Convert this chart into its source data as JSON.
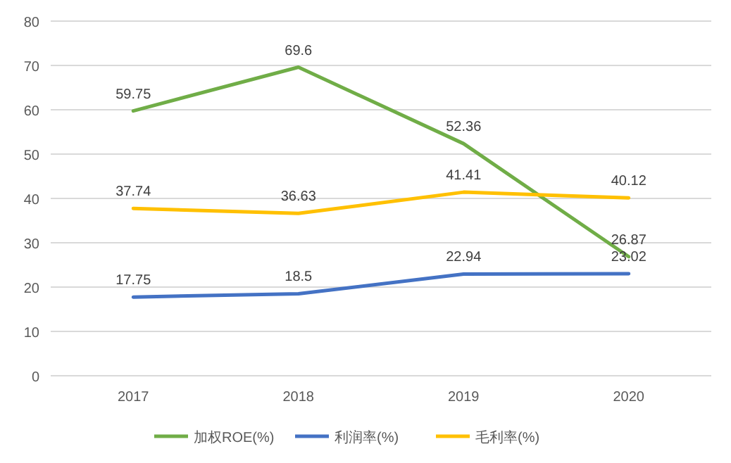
{
  "chart_data": {
    "type": "line",
    "categories": [
      "2017",
      "2018",
      "2019",
      "2020"
    ],
    "series": [
      {
        "name": "加权ROE(%)",
        "color": "#70ad47",
        "values": [
          59.75,
          69.6,
          52.36,
          26.87
        ]
      },
      {
        "name": "利润率(%)",
        "color": "#4472c4",
        "values": [
          17.75,
          18.5,
          22.94,
          23.02
        ]
      },
      {
        "name": "毛利率(%)",
        "color": "#ffc000",
        "values": [
          37.74,
          36.63,
          41.41,
          40.12
        ]
      }
    ],
    "ylim": [
      0,
      80
    ],
    "yticks": [
      0,
      10,
      20,
      30,
      40,
      50,
      60,
      70,
      80
    ],
    "grid": "y",
    "legend": "bottom",
    "data_labels": true,
    "marker": "none",
    "line_style": "solid"
  }
}
